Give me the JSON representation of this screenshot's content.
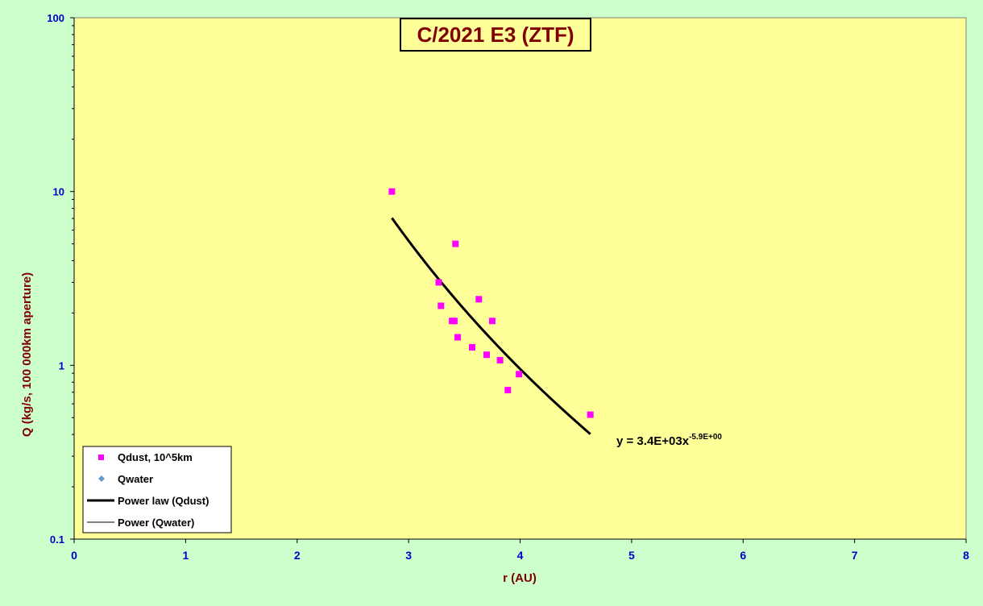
{
  "chart_data": {
    "type": "scatter",
    "title": "C/2021 E3 (ZTF)",
    "xlabel": "r (AU)",
    "ylabel": "Q (kg/s, 100 000km aperture)",
    "xlim": [
      0,
      8
    ],
    "ylim": [
      0.1,
      100
    ],
    "y_scale": "log",
    "x_ticks": [
      "0",
      "1",
      "2",
      "3",
      "4",
      "5",
      "6",
      "7",
      "8"
    ],
    "y_ticks": [
      "0.1",
      "1",
      "10",
      "100"
    ],
    "grid": false,
    "legend_position": "bottom-left",
    "colors": {
      "page_background": "#ccffcc",
      "plot_background": "#ffff99",
      "dust_marker": "#ff00ff",
      "water_marker": "#6699cc",
      "axis_text": "#0000cc",
      "title_text": "#800000"
    },
    "series": [
      {
        "name": "Qdust, 10^5km",
        "marker": "square",
        "points": [
          {
            "x": 2.85,
            "y": 10.0
          },
          {
            "x": 3.27,
            "y": 3.0
          },
          {
            "x": 3.29,
            "y": 2.2
          },
          {
            "x": 3.39,
            "y": 1.8
          },
          {
            "x": 3.41,
            "y": 1.8
          },
          {
            "x": 3.42,
            "y": 5.0
          },
          {
            "x": 3.44,
            "y": 1.45
          },
          {
            "x": 3.57,
            "y": 1.27
          },
          {
            "x": 3.63,
            "y": 2.4
          },
          {
            "x": 3.7,
            "y": 1.15
          },
          {
            "x": 3.75,
            "y": 1.8
          },
          {
            "x": 3.82,
            "y": 1.07
          },
          {
            "x": 3.89,
            "y": 0.72
          },
          {
            "x": 3.99,
            "y": 0.89
          },
          {
            "x": 4.63,
            "y": 0.52
          }
        ]
      },
      {
        "name": "Qwater",
        "marker": "diamond",
        "points": []
      },
      {
        "name": "Power law (Qdust)",
        "type": "fit",
        "a": 3400,
        "b": -5.9,
        "x_range": [
          2.85,
          4.63
        ]
      },
      {
        "name": "Power (Qwater)",
        "type": "fit",
        "points": []
      }
    ],
    "annotation": {
      "text": "y = 3.4E+03x",
      "superscript": "-5.9E+00"
    }
  }
}
